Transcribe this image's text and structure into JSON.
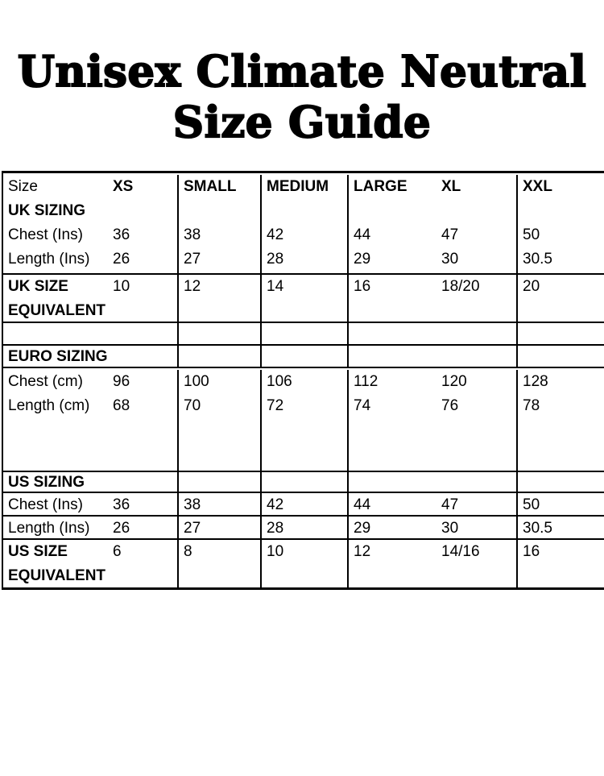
{
  "title": {
    "line1": "Unisex Climate Neutral",
    "line2": "Size Guide"
  },
  "colors": {
    "text": "#000000",
    "border": "#000000",
    "background": "#ffffff"
  },
  "table": {
    "header": {
      "size": "Size",
      "xs": "XS",
      "small": "SMALL",
      "medium": "MEDIUM",
      "large": "LARGE",
      "xl": "XL",
      "xxl": "XXL"
    },
    "uk": {
      "section": "UK SIZING",
      "chest": {
        "label": "Chest (Ins)",
        "values": [
          "36",
          "38",
          "42",
          "44",
          "47",
          "50"
        ]
      },
      "length": {
        "label": "Length (Ins)",
        "values": [
          "26",
          "27",
          "28",
          "29",
          "30",
          "30.5"
        ]
      },
      "equivalent": {
        "label1": "UK SIZE",
        "label2": "EQUIVALENT",
        "values": [
          "10",
          "12",
          "14",
          "16",
          "18/20",
          "20"
        ]
      }
    },
    "euro": {
      "section": "EURO SIZING",
      "chest": {
        "label": "Chest (cm)",
        "values": [
          "96",
          "100",
          "106",
          "112",
          "120",
          "128"
        ]
      },
      "length": {
        "label": "Length (cm)",
        "values": [
          "68",
          "70",
          "72",
          "74",
          "76",
          "78"
        ]
      }
    },
    "us": {
      "section": "US SIZING",
      "chest": {
        "label": "Chest (Ins)",
        "values": [
          "36",
          "38",
          "42",
          "44",
          "47",
          "50"
        ]
      },
      "length": {
        "label": "Length (Ins)",
        "values": [
          "26",
          "27",
          "28",
          "29",
          "30",
          "30.5"
        ]
      },
      "equivalent": {
        "label1": "US SIZE",
        "label2": "EQUIVALENT",
        "values": [
          "6",
          "8",
          "10",
          "12",
          "14/16",
          "16"
        ]
      }
    }
  }
}
